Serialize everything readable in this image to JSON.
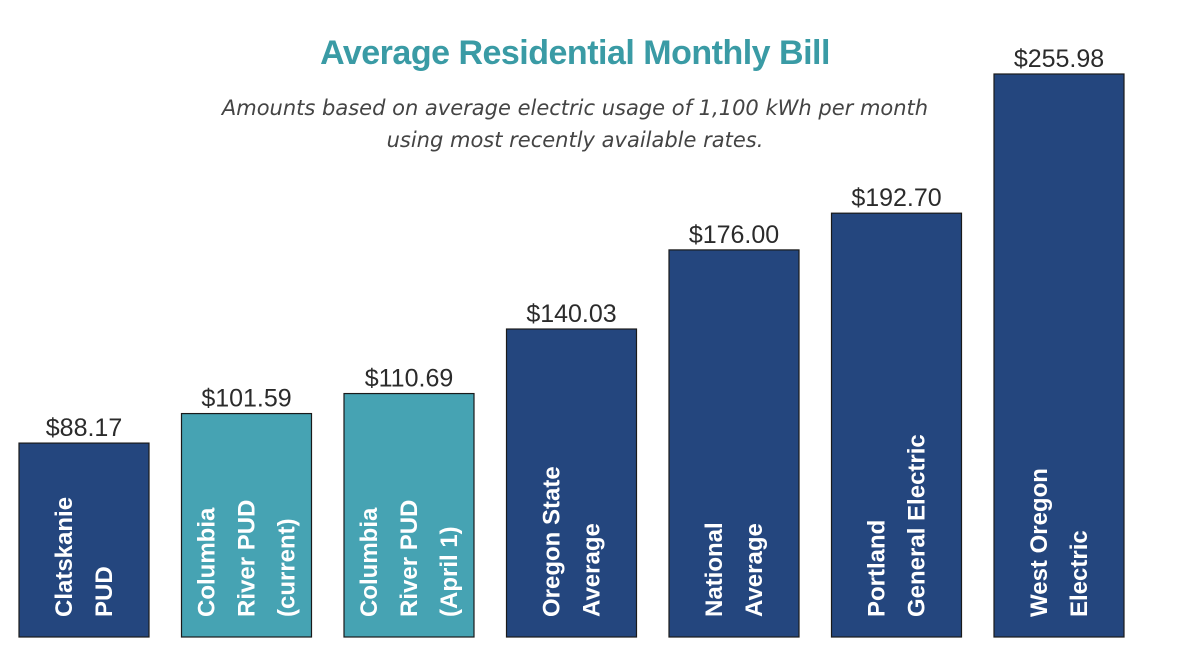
{
  "chart_data": {
    "type": "bar",
    "title": "Average Residential Monthly Bill",
    "subtitle_lines": [
      "Amounts based on average electric usage of 1,100 kWh per month",
      "using most recently available rates."
    ],
    "categories": [
      [
        "Clatskanie",
        "PUD"
      ],
      [
        "Columbia",
        "River PUD",
        "(current)"
      ],
      [
        "Columbia",
        "River PUD",
        "(April 1)"
      ],
      [
        "Oregon State",
        "Average"
      ],
      [
        "National",
        "Average"
      ],
      [
        "Portland",
        "General Electric"
      ],
      [
        "West Oregon",
        "Electric"
      ]
    ],
    "values": [
      88.17,
      101.59,
      110.69,
      140.03,
      176.0,
      192.7,
      255.98
    ],
    "value_labels": [
      "$88.17",
      "$101.59",
      "$110.69",
      "$140.03",
      "$176.00",
      "$192.70",
      "$255.98"
    ],
    "bar_colors": [
      "#24467e",
      "#46a3b3",
      "#46a3b3",
      "#24467e",
      "#24467e",
      "#24467e",
      "#24467e"
    ],
    "ylim": [
      0,
      270
    ],
    "grid": false,
    "legend": "none"
  }
}
